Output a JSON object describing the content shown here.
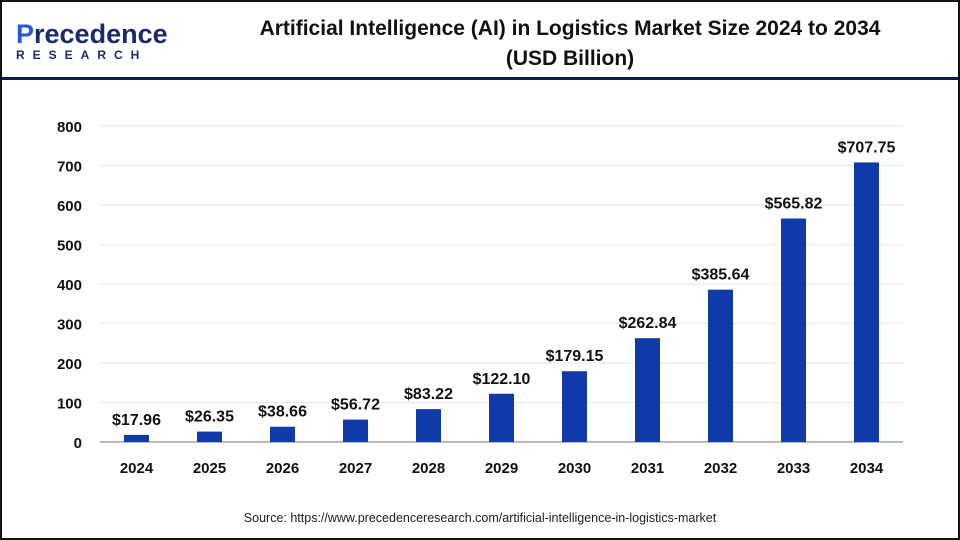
{
  "logo": {
    "line1_a": "P",
    "line1_b": "recedence",
    "line2": "RESEARCH"
  },
  "title_line1": "Artificial Intelligence (AI) in Logistics Market Size 2024 to 2034",
  "title_line2": "(USD Billion)",
  "source": "Source: https://www.precedenceresearch.com/artificial-intelligence-in-logistics-market",
  "chart_data": {
    "type": "bar",
    "title": "Artificial Intelligence (AI) in Logistics Market Size 2024 to 2034 (USD Billion)",
    "categories": [
      "2024",
      "2025",
      "2026",
      "2027",
      "2028",
      "2029",
      "2030",
      "2031",
      "2032",
      "2033",
      "2034"
    ],
    "values": [
      17.96,
      26.35,
      38.66,
      56.72,
      83.22,
      122.1,
      179.15,
      262.84,
      385.64,
      565.82,
      707.75
    ],
    "data_labels": [
      "$17.96",
      "$26.35",
      "$38.66",
      "$56.72",
      "$83.22",
      "$122.10",
      "$179.15",
      "$262.84",
      "$385.64",
      "$565.82",
      "$707.75"
    ],
    "yticks": [
      0,
      100,
      200,
      300,
      400,
      500,
      600,
      700,
      800
    ],
    "ylim": [
      0,
      800
    ],
    "grid": true,
    "bar_color": "#0f3aa8"
  }
}
